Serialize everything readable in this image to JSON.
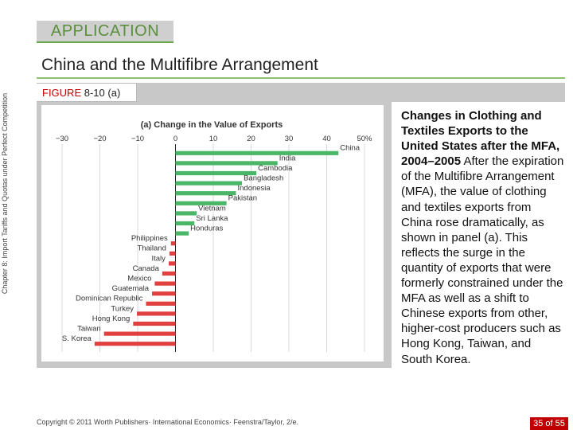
{
  "slide": {
    "banner": "APPLICATION",
    "title": "China and the Multifibre Arrangement",
    "figure_word": "FIGURE",
    "figure_number": "8-10 (a)",
    "side_label": "Chapter 8:  Import Tariffs and Quotas under Perfect Competition",
    "caption_title": "Changes in Clothing and Textiles Exports to the United States after the MFA, 2004–2005",
    "caption_body": "After the expiration of the Multifibre Arrangement (MFA), the value of clothing and textiles exports from China rose dramatically, as shown in panel (a). This reflects the surge in the quantity of exports that were formerly constrained under the MFA as well as a shift to Chinese exports from other, higher-cost producers such as Hong Kong, Taiwan, and South Korea.",
    "copyright": "Copyright © 2011 Worth Publishers· International Economics· Feenstra/Taylor, 2/e.",
    "page_current": "35",
    "page_of": "of",
    "page_total": "55"
  },
  "chart_data": {
    "type": "bar",
    "orientation": "horizontal",
    "title": "(a) Change in the Value of Exports",
    "xlim": [
      -30,
      50
    ],
    "ticks": [
      -30,
      -20,
      -10,
      0,
      10,
      20,
      30,
      40,
      50
    ],
    "tick_labels": [
      "−30",
      "−20",
      "−10",
      "0",
      "10",
      "20",
      "30",
      "40",
      "50%"
    ],
    "grid": true,
    "categories": [
      "China",
      "India",
      "Cambodia",
      "Bangladesh",
      "Indonesia",
      "Pakistan",
      "Vietnam",
      "Sri Lanka",
      "Honduras",
      "Philippines",
      "Thailand",
      "Italy",
      "Canada",
      "Mexico",
      "Guatemala",
      "Dominican Republic",
      "Turkey",
      "Hong Kong",
      "Taiwan",
      "S. Korea"
    ],
    "values": [
      43.1,
      27.0,
      21.4,
      17.6,
      16.0,
      13.5,
      5.6,
      5.0,
      3.5,
      -1.2,
      -1.6,
      -1.8,
      -3.5,
      -5.5,
      -6.2,
      -7.8,
      -10.2,
      -11.2,
      -18.9,
      -21.4
    ],
    "colors": {
      "bar": "#4ab667",
      "bar_negative": "#e04040",
      "plot_background": "#ffffff",
      "grid": "#cfcfcf",
      "zero_line": "#222222"
    }
  }
}
